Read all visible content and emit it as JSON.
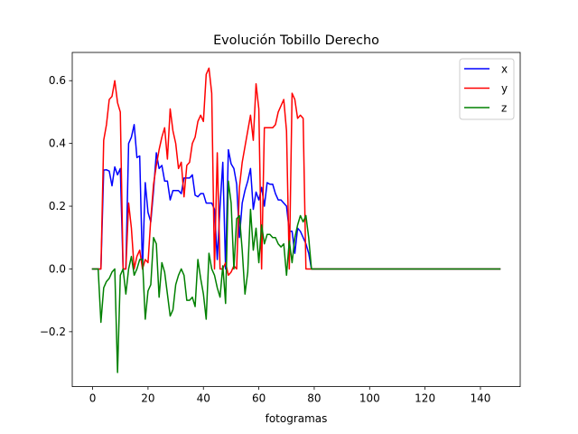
{
  "chart_data": {
    "type": "line",
    "title": "Evolución Tobillo Derecho",
    "xlabel": "fotogramas",
    "ylabel": "",
    "xlim": [
      -7.35,
      154.35
    ],
    "ylim": [
      -0.375,
      0.69
    ],
    "xticks": [
      0,
      20,
      40,
      60,
      80,
      100,
      120,
      140
    ],
    "yticks": [
      -0.2,
      0.0,
      0.2,
      0.4,
      0.6
    ],
    "ytick_labels": [
      "−0.2",
      "0.0",
      "0.2",
      "0.4",
      "0.6"
    ],
    "legend_position": "top-right",
    "grid": false,
    "series": [
      {
        "name": "x",
        "color": "#0000ff",
        "points": [
          [
            0,
            0
          ],
          [
            1,
            0
          ],
          [
            2,
            0
          ],
          [
            3,
            0
          ],
          [
            4,
            0.315
          ],
          [
            5,
            0.316
          ],
          [
            6,
            0.312
          ],
          [
            7,
            0.265
          ],
          [
            8,
            0.325
          ],
          [
            9,
            0.3
          ],
          [
            10,
            0.32
          ],
          [
            11,
            0.0
          ],
          [
            12,
            0.0
          ],
          [
            13,
            0.4
          ],
          [
            14,
            0.42
          ],
          [
            15,
            0.46
          ],
          [
            16,
            0.355
          ],
          [
            17,
            0.36
          ],
          [
            18,
            0.0
          ],
          [
            19,
            0.275
          ],
          [
            20,
            0.18
          ],
          [
            21,
            0.15
          ],
          [
            22,
            0.25
          ],
          [
            23,
            0.37
          ],
          [
            24,
            0.32
          ],
          [
            25,
            0.33
          ],
          [
            26,
            0.28
          ],
          [
            27,
            0.28
          ],
          [
            28,
            0.22
          ],
          [
            29,
            0.25
          ],
          [
            30,
            0.25
          ],
          [
            31,
            0.25
          ],
          [
            32,
            0.24
          ],
          [
            33,
            0.29
          ],
          [
            34,
            0.29
          ],
          [
            35,
            0.29
          ],
          [
            36,
            0.3
          ],
          [
            37,
            0.235
          ],
          [
            38,
            0.23
          ],
          [
            39,
            0.24
          ],
          [
            40,
            0.24
          ],
          [
            41,
            0.21
          ],
          [
            42,
            0.21
          ],
          [
            43,
            0.21
          ],
          [
            44,
            0.19
          ],
          [
            45,
            0.03
          ],
          [
            46,
            0.2
          ],
          [
            47,
            0.34
          ],
          [
            48,
            0.0
          ],
          [
            49,
            0.38
          ],
          [
            50,
            0.335
          ],
          [
            51,
            0.32
          ],
          [
            52,
            0.27
          ],
          [
            53,
            0.1
          ],
          [
            54,
            0.21
          ],
          [
            55,
            0.25
          ],
          [
            56,
            0.28
          ],
          [
            57,
            0.32
          ],
          [
            58,
            0.19
          ],
          [
            59,
            0.245
          ],
          [
            60,
            0.22
          ],
          [
            61,
            0.26
          ],
          [
            62,
            0.2
          ],
          [
            63,
            0.275
          ],
          [
            64,
            0.27
          ],
          [
            65,
            0.27
          ],
          [
            66,
            0.24
          ],
          [
            67,
            0.22
          ],
          [
            68,
            0.22
          ],
          [
            69,
            0.21
          ],
          [
            70,
            0.2
          ],
          [
            71,
            0.12
          ],
          [
            72,
            0.12
          ],
          [
            73,
            0.05
          ],
          [
            74,
            0.13
          ],
          [
            75,
            0.12
          ],
          [
            76,
            0.1
          ],
          [
            77,
            0.08
          ],
          [
            78,
            0.05
          ],
          [
            79,
            0.0
          ],
          [
            80,
            0.0
          ],
          [
            147,
            0.0
          ]
        ]
      },
      {
        "name": "y",
        "color": "#ff0000",
        "points": [
          [
            0,
            0
          ],
          [
            1,
            0
          ],
          [
            2,
            0
          ],
          [
            3,
            0
          ],
          [
            4,
            0.41
          ],
          [
            5,
            0.46
          ],
          [
            6,
            0.54
          ],
          [
            7,
            0.55
          ],
          [
            8,
            0.6
          ],
          [
            9,
            0.53
          ],
          [
            10,
            0.5
          ],
          [
            11,
            0.0
          ],
          [
            12,
            0.0
          ],
          [
            13,
            0.21
          ],
          [
            14,
            0.13
          ],
          [
            15,
            0.0
          ],
          [
            16,
            0.04
          ],
          [
            17,
            0.06
          ],
          [
            18,
            0.0
          ],
          [
            19,
            0.03
          ],
          [
            20,
            0.02
          ],
          [
            21,
            0.16
          ],
          [
            22,
            0.27
          ],
          [
            23,
            0.33
          ],
          [
            24,
            0.38
          ],
          [
            25,
            0.42
          ],
          [
            26,
            0.45
          ],
          [
            27,
            0.35
          ],
          [
            28,
            0.51
          ],
          [
            29,
            0.44
          ],
          [
            30,
            0.4
          ],
          [
            31,
            0.32
          ],
          [
            32,
            0.34
          ],
          [
            33,
            0.23
          ],
          [
            34,
            0.33
          ],
          [
            35,
            0.34
          ],
          [
            36,
            0.4
          ],
          [
            37,
            0.42
          ],
          [
            38,
            0.47
          ],
          [
            39,
            0.49
          ],
          [
            40,
            0.47
          ],
          [
            41,
            0.62
          ],
          [
            42,
            0.64
          ],
          [
            43,
            0.56
          ],
          [
            44,
            0.0
          ],
          [
            45,
            0.37
          ],
          [
            46,
            0.0
          ],
          [
            47,
            0.0
          ],
          [
            48,
            0.02
          ],
          [
            49,
            -0.02
          ],
          [
            50,
            -0.01
          ],
          [
            51,
            0.01
          ],
          [
            52,
            0.0
          ],
          [
            53,
            0.26
          ],
          [
            54,
            0.34
          ],
          [
            55,
            0.39
          ],
          [
            56,
            0.44
          ],
          [
            57,
            0.49
          ],
          [
            58,
            0.41
          ],
          [
            59,
            0.59
          ],
          [
            60,
            0.51
          ],
          [
            61,
            0.0
          ],
          [
            62,
            0.45
          ],
          [
            63,
            0.45
          ],
          [
            64,
            0.45
          ],
          [
            65,
            0.45
          ],
          [
            66,
            0.46
          ],
          [
            67,
            0.5
          ],
          [
            68,
            0.52
          ],
          [
            69,
            0.54
          ],
          [
            70,
            0.44
          ],
          [
            71,
            0.0
          ],
          [
            72,
            0.56
          ],
          [
            73,
            0.54
          ],
          [
            74,
            0.48
          ],
          [
            75,
            0.49
          ],
          [
            76,
            0.48
          ],
          [
            77,
            0.0
          ],
          [
            78,
            0.0
          ],
          [
            79,
            0.0
          ],
          [
            80,
            0.0
          ],
          [
            147,
            0.0
          ]
        ]
      },
      {
        "name": "z",
        "color": "#008000",
        "points": [
          [
            0,
            0
          ],
          [
            1,
            0
          ],
          [
            2,
            0
          ],
          [
            3,
            -0.17
          ],
          [
            4,
            -0.06
          ],
          [
            5,
            -0.04
          ],
          [
            6,
            -0.03
          ],
          [
            7,
            -0.01
          ],
          [
            8,
            0.0
          ],
          [
            9,
            -0.33
          ],
          [
            10,
            -0.02
          ],
          [
            11,
            0.0
          ],
          [
            12,
            -0.08
          ],
          [
            13,
            0.0
          ],
          [
            14,
            0.04
          ],
          [
            15,
            -0.02
          ],
          [
            16,
            0.0
          ],
          [
            17,
            0.03
          ],
          [
            18,
            0.03
          ],
          [
            19,
            -0.16
          ],
          [
            20,
            -0.07
          ],
          [
            21,
            -0.05
          ],
          [
            22,
            0.1
          ],
          [
            23,
            0.08
          ],
          [
            24,
            -0.09
          ],
          [
            25,
            0.02
          ],
          [
            26,
            -0.01
          ],
          [
            27,
            -0.08
          ],
          [
            28,
            -0.15
          ],
          [
            29,
            -0.13
          ],
          [
            30,
            -0.05
          ],
          [
            31,
            -0.02
          ],
          [
            32,
            0.0
          ],
          [
            33,
            -0.02
          ],
          [
            34,
            -0.1
          ],
          [
            35,
            -0.1
          ],
          [
            36,
            -0.09
          ],
          [
            37,
            -0.12
          ],
          [
            38,
            0.03
          ],
          [
            39,
            -0.03
          ],
          [
            40,
            -0.08
          ],
          [
            41,
            -0.16
          ],
          [
            42,
            0.05
          ],
          [
            43,
            0.0
          ],
          [
            44,
            -0.02
          ],
          [
            45,
            -0.06
          ],
          [
            46,
            -0.09
          ],
          [
            47,
            0.01
          ],
          [
            48,
            -0.11
          ],
          [
            49,
            0.28
          ],
          [
            50,
            0.21
          ],
          [
            51,
            0.0
          ],
          [
            52,
            0.16
          ],
          [
            53,
            0.17
          ],
          [
            54,
            0.06
          ],
          [
            55,
            -0.08
          ],
          [
            56,
            -0.01
          ],
          [
            57,
            0.19
          ],
          [
            58,
            0.06
          ],
          [
            59,
            0.13
          ],
          [
            60,
            0.02
          ],
          [
            61,
            0.14
          ],
          [
            62,
            0.08
          ],
          [
            63,
            0.11
          ],
          [
            64,
            0.11
          ],
          [
            65,
            0.1
          ],
          [
            66,
            0.1
          ],
          [
            67,
            0.08
          ],
          [
            68,
            0.07
          ],
          [
            69,
            0.08
          ],
          [
            70,
            -0.02
          ],
          [
            71,
            0.09
          ],
          [
            72,
            0.02
          ],
          [
            73,
            0.1
          ],
          [
            74,
            0.14
          ],
          [
            75,
            0.17
          ],
          [
            76,
            0.15
          ],
          [
            77,
            0.17
          ],
          [
            78,
            0.1
          ],
          [
            79,
            0.0
          ],
          [
            80,
            0.0
          ],
          [
            147,
            0.0
          ]
        ]
      }
    ]
  }
}
